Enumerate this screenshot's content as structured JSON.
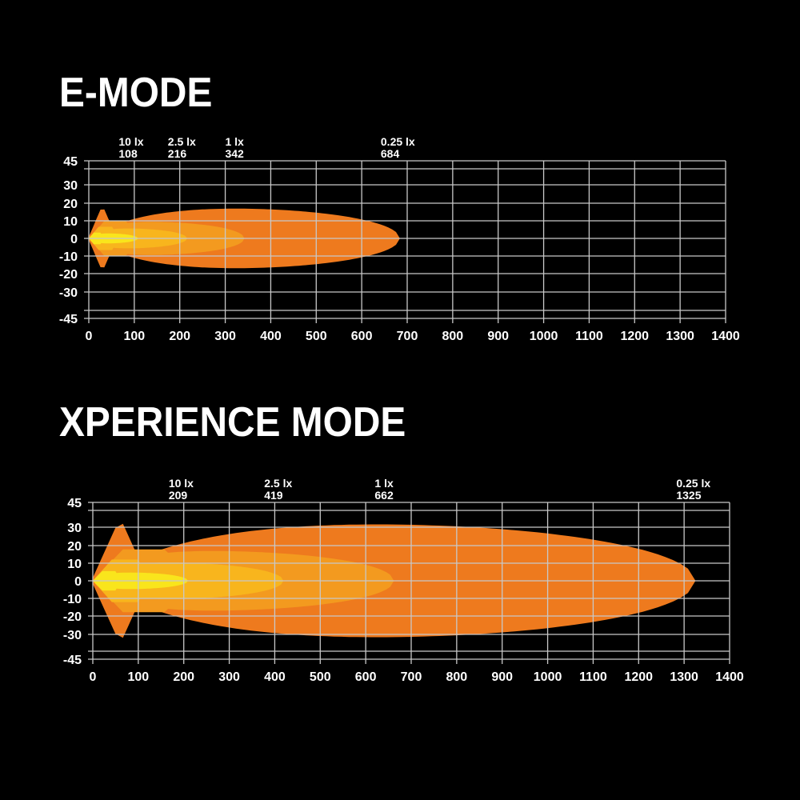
{
  "chart_data": [
    {
      "type": "area",
      "title": "E-MODE",
      "xlim": [
        0,
        1400
      ],
      "ylim": [
        -45,
        45
      ],
      "x_ticks": [
        0,
        100,
        200,
        300,
        400,
        500,
        600,
        700,
        800,
        900,
        1000,
        1100,
        1200,
        1300,
        1400
      ],
      "y_ticks": [
        45,
        30,
        20,
        10,
        0,
        -10,
        -20,
        -30,
        -45
      ],
      "grid": true,
      "contours": [
        {
          "lux": "0.25 lx",
          "distance": "684",
          "reach": 684,
          "half_width": 19,
          "color": "#ee7a1e"
        },
        {
          "lux": "1 lx",
          "distance": "342",
          "reach": 342,
          "half_width": 10,
          "color": "#f39a1f"
        },
        {
          "lux": "2.5 lx",
          "distance": "216",
          "reach": 216,
          "half_width": 6,
          "color": "#f8b51d"
        },
        {
          "lux": "10 lx",
          "distance": "108",
          "reach": 108,
          "half_width": 3,
          "color": "#f9e51c"
        }
      ]
    },
    {
      "type": "area",
      "title": "XPERIENCE MODE",
      "xlim": [
        0,
        1400
      ],
      "ylim": [
        -45,
        45
      ],
      "x_ticks": [
        0,
        100,
        200,
        300,
        400,
        500,
        600,
        700,
        800,
        900,
        1000,
        1100,
        1200,
        1300,
        1400
      ],
      "y_ticks": [
        45,
        30,
        20,
        10,
        0,
        -10,
        -20,
        -30,
        -45
      ],
      "grid": true,
      "contours": [
        {
          "lux": "0.25 lx",
          "distance": "1325",
          "reach": 1325,
          "half_width": 36,
          "color": "#ee7a1e"
        },
        {
          "lux": "1 lx",
          "distance": "662",
          "reach": 662,
          "half_width": 18,
          "color": "#f39a1f"
        },
        {
          "lux": "2.5 lx",
          "distance": "419",
          "reach": 419,
          "half_width": 11,
          "color": "#f8b51d"
        },
        {
          "lux": "10 lx",
          "distance": "209",
          "reach": 209,
          "half_width": 5,
          "color": "#f9e51c"
        }
      ]
    }
  ]
}
